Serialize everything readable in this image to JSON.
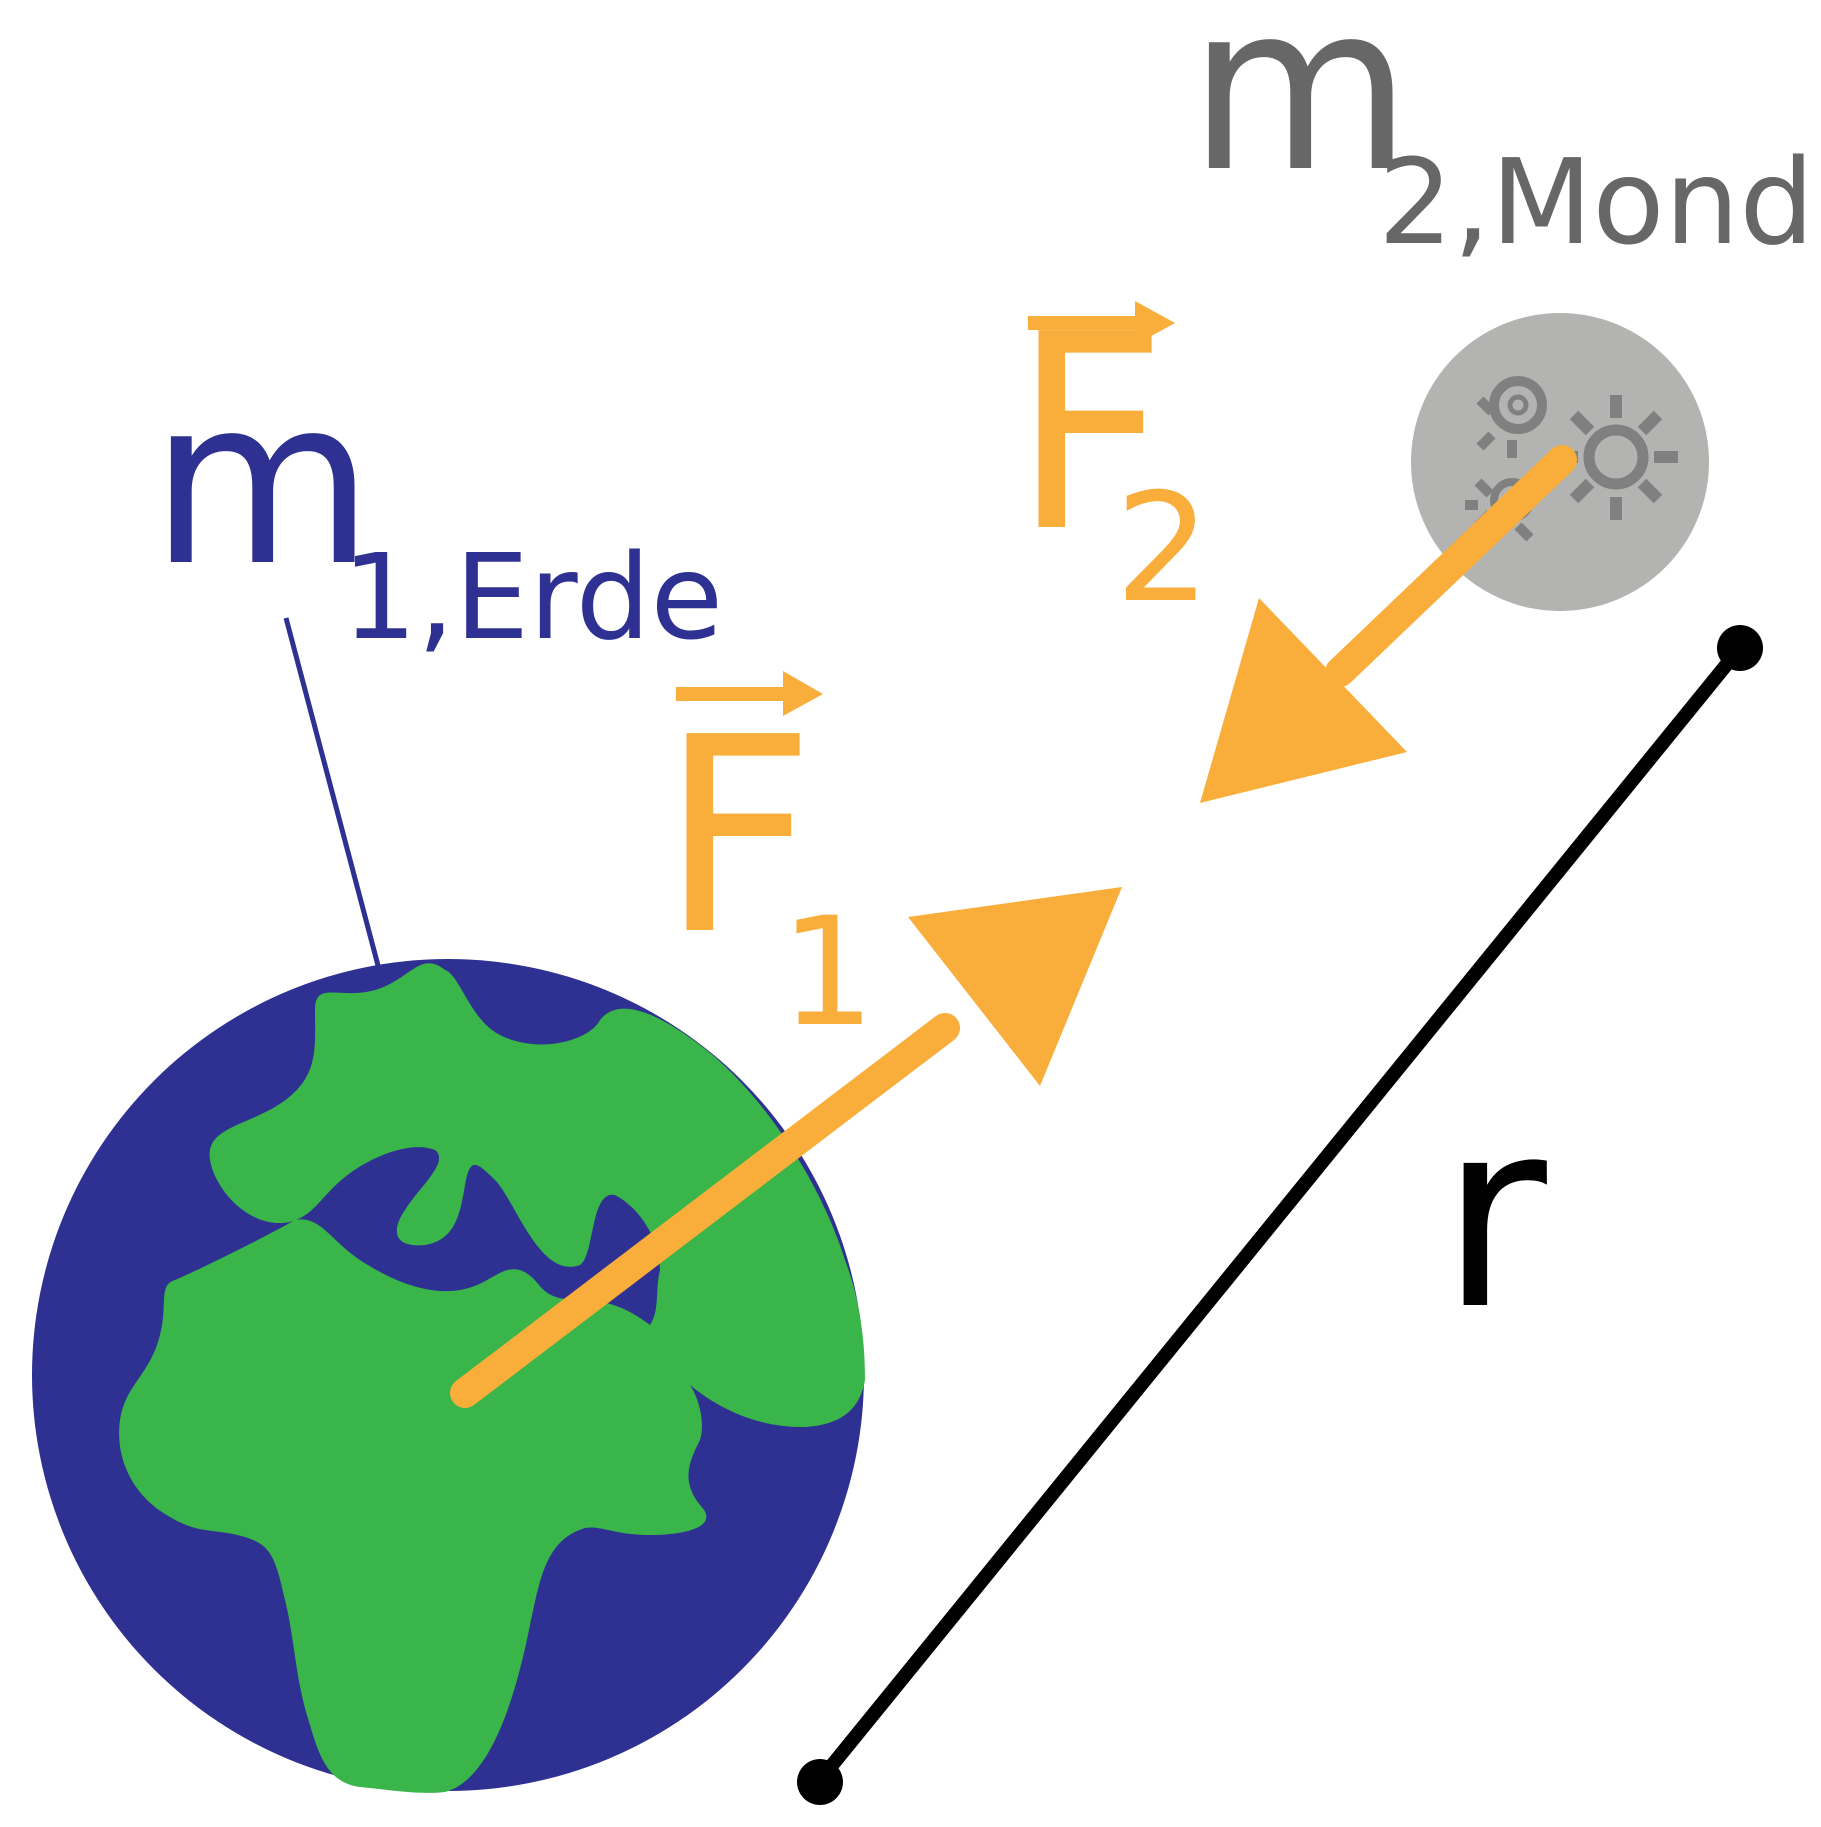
{
  "colors": {
    "background": "#ffffff",
    "earth_ocean": "#2e3191",
    "earth_land": "#39b54a",
    "force": "#f9ae3b",
    "moon": "#b3b3b1",
    "moon_craters": "#808080",
    "mass2_label": "#676767",
    "mass1_label": "#2e3191",
    "distance": "#000000"
  },
  "labels": {
    "m1_symbol": "m",
    "m1_subscript": "1,Erde",
    "m2_symbol": "m",
    "m2_subscript": "2,Mond",
    "f1_symbol": "F",
    "f1_subscript": "1",
    "f2_symbol": "F",
    "f2_subscript": "2",
    "distance": "r"
  },
  "icons": {
    "earth": "earth-icon",
    "moon": "moon-icon",
    "crater": "crater-icon"
  }
}
